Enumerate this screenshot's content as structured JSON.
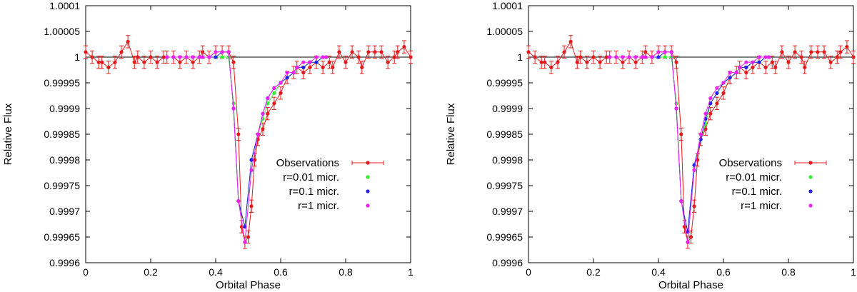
{
  "chart_data": [
    {
      "type": "scatter",
      "xlabel": "Orbital Phase",
      "ylabel": "Relative Flux",
      "xlim": [
        0,
        1
      ],
      "ylim": [
        0.9996,
        1.0001
      ],
      "xticks": [
        "0",
        "0.2",
        "0.4",
        "0.6",
        "0.8",
        "1"
      ],
      "yticks": [
        "0.9996",
        "0.99965",
        "0.9997",
        "0.99975",
        "0.9998",
        "0.99985",
        "0.9999",
        "0.99995",
        "1",
        "1.00005",
        "1.0001"
      ],
      "reference_line_y": 1.0,
      "legend_position": "right",
      "series": [
        {
          "name": "Observations",
          "color": "#e41a1c",
          "style": "line-points-errorbars",
          "x": [
            0.0,
            0.02,
            0.04,
            0.05,
            0.07,
            0.09,
            0.11,
            0.13,
            0.15,
            0.16,
            0.18,
            0.2,
            0.22,
            0.24,
            0.25,
            0.27,
            0.29,
            0.31,
            0.33,
            0.35,
            0.36,
            0.38,
            0.4,
            0.42,
            0.44,
            0.455,
            0.47,
            0.48,
            0.49,
            0.5,
            0.51,
            0.52,
            0.53,
            0.545,
            0.56,
            0.58,
            0.6,
            0.62,
            0.64,
            0.65,
            0.67,
            0.69,
            0.71,
            0.73,
            0.75,
            0.76,
            0.78,
            0.8,
            0.82,
            0.84,
            0.85,
            0.87,
            0.89,
            0.91,
            0.93,
            0.95,
            0.96,
            0.98,
            1.0
          ],
          "y": [
            1.00001,
            1.0,
            0.99999,
            0.99999,
            0.99998,
            0.99999,
            1.00001,
            1.00003,
            0.99999,
            1.0,
            0.99999,
            1.0,
            0.99999,
            1.0,
            1.0,
            1.0,
            0.99999,
            1.0,
            0.99999,
            1.0,
            1.00001,
            1.0,
            1.00001,
            1.00001,
            1.00001,
            0.99999,
            0.99985,
            0.99967,
            0.99964,
            0.99965,
            0.99971,
            0.9998,
            0.99984,
            0.99986,
            0.99989,
            0.99991,
            0.99993,
            0.99996,
            0.99997,
            0.99998,
            0.99997,
            0.99998,
            0.99999,
            0.99998,
            0.99999,
            0.99998,
            1.00001,
            0.99999,
            1.00001,
            1.0,
            0.99998,
            1.00001,
            1.00001,
            1.00001,
            0.99999,
            1.0,
            1.00001,
            1.00002,
            1.0
          ],
          "yerr": 1.2e-05
        },
        {
          "name": "r=0.01 micr.",
          "color": "#33ee33",
          "style": "line-points",
          "x": [
            0.25,
            0.27,
            0.29,
            0.31,
            0.33,
            0.35,
            0.36,
            0.38,
            0.4,
            0.42,
            0.44,
            0.455,
            0.47,
            0.49,
            0.51,
            0.53,
            0.545,
            0.56,
            0.58,
            0.6,
            0.62,
            0.64,
            0.65,
            0.67,
            0.69,
            0.71,
            0.73,
            0.74
          ],
          "y": [
            1.0,
            1.0,
            1.0,
            1.0,
            1.0,
            1.0,
            1.0,
            1.0,
            1.0,
            1.0,
            1.0,
            0.99991,
            0.99972,
            0.99967,
            0.9998,
            0.99985,
            0.99988,
            0.99991,
            0.99993,
            0.99995,
            0.99996,
            0.99997,
            0.99998,
            0.99998,
            0.99999,
            0.99999,
            1.0,
            1.0
          ]
        },
        {
          "name": "r=0.1 micr.",
          "color": "#2222ee",
          "style": "line-points",
          "x": [
            0.25,
            0.27,
            0.29,
            0.31,
            0.33,
            0.35,
            0.36,
            0.38,
            0.4,
            0.42,
            0.44,
            0.455,
            0.47,
            0.49,
            0.51,
            0.53,
            0.545,
            0.56,
            0.58,
            0.6,
            0.62,
            0.64,
            0.65,
            0.67,
            0.69,
            0.71,
            0.73,
            0.74
          ],
          "y": [
            1.0,
            1.0,
            1.0,
            1.0,
            1.0,
            1.0,
            1.0,
            1.0,
            1.0,
            1.00001,
            1.00001,
            0.9999,
            0.99972,
            0.99967,
            0.9998,
            0.99985,
            0.99989,
            0.99992,
            0.99994,
            0.99995,
            0.99996,
            0.99997,
            0.99998,
            0.99998,
            0.99999,
            0.99999,
            1.0,
            1.0
          ]
        },
        {
          "name": "r=1 micr.",
          "color": "#ee22ee",
          "style": "line-points",
          "x": [
            0.25,
            0.27,
            0.29,
            0.31,
            0.33,
            0.35,
            0.36,
            0.38,
            0.4,
            0.42,
            0.44,
            0.455,
            0.47,
            0.49,
            0.51,
            0.53,
            0.545,
            0.56,
            0.58,
            0.6,
            0.62,
            0.64,
            0.65,
            0.67,
            0.69,
            0.71,
            0.73,
            0.74
          ],
          "y": [
            1.0,
            1.0,
            1.0,
            1.0,
            1.0,
            1.0,
            1.0,
            1.0,
            1.00001,
            1.00001,
            1.00001,
            0.9999,
            0.99972,
            0.99964,
            0.99978,
            0.99985,
            0.99989,
            0.99992,
            0.99994,
            0.99995,
            0.99997,
            0.99997,
            0.99998,
            0.99999,
            0.99999,
            1.0,
            1.0,
            1.0
          ]
        }
      ]
    },
    {
      "type": "scatter",
      "xlabel": "Orbital Phase",
      "ylabel": "Relative Flux",
      "xlim": [
        0,
        1
      ],
      "ylim": [
        0.9996,
        1.0001
      ],
      "xticks": [
        "0",
        "0.2",
        "0.4",
        "0.6",
        "0.8",
        "1"
      ],
      "yticks": [
        "0.9996",
        "0.99965",
        "0.9997",
        "0.99975",
        "0.9998",
        "0.99985",
        "0.9999",
        "0.99995",
        "1",
        "1.00005",
        "1.0001"
      ],
      "reference_line_y": 1.0,
      "legend_position": "right",
      "series": [
        {
          "name": "Observations",
          "color": "#e41a1c",
          "style": "line-points-errorbars",
          "x": [
            0.0,
            0.02,
            0.04,
            0.05,
            0.07,
            0.09,
            0.11,
            0.13,
            0.15,
            0.16,
            0.18,
            0.2,
            0.22,
            0.24,
            0.25,
            0.27,
            0.29,
            0.31,
            0.33,
            0.35,
            0.36,
            0.38,
            0.4,
            0.42,
            0.44,
            0.455,
            0.47,
            0.48,
            0.49,
            0.5,
            0.51,
            0.52,
            0.53,
            0.545,
            0.56,
            0.58,
            0.6,
            0.62,
            0.64,
            0.65,
            0.67,
            0.69,
            0.71,
            0.73,
            0.75,
            0.76,
            0.78,
            0.8,
            0.82,
            0.84,
            0.85,
            0.87,
            0.89,
            0.91,
            0.93,
            0.95,
            0.96,
            0.98,
            1.0
          ],
          "y": [
            1.00001,
            1.0,
            0.99999,
            0.99999,
            0.99998,
            0.99999,
            1.00001,
            1.00003,
            0.99999,
            1.0,
            0.99999,
            1.0,
            0.99999,
            1.0,
            1.0,
            1.0,
            0.99999,
            1.0,
            0.99999,
            1.0,
            1.00001,
            1.0,
            1.00001,
            1.00001,
            1.00001,
            0.99999,
            0.99985,
            0.99967,
            0.99964,
            0.99965,
            0.99971,
            0.9998,
            0.99984,
            0.99986,
            0.99989,
            0.99991,
            0.99993,
            0.99996,
            0.99997,
            0.99998,
            0.99997,
            0.99998,
            0.99999,
            0.99998,
            0.99999,
            0.99998,
            1.00001,
            0.99999,
            1.00001,
            1.0,
            0.99998,
            1.00001,
            1.00001,
            1.00001,
            0.99999,
            1.0,
            1.00001,
            1.00002,
            1.0
          ],
          "yerr": 1.2e-05
        },
        {
          "name": "r=0.01 micr.",
          "color": "#33ee33",
          "style": "line-points",
          "x": [
            0.25,
            0.27,
            0.29,
            0.31,
            0.33,
            0.35,
            0.36,
            0.38,
            0.4,
            0.42,
            0.44,
            0.455,
            0.47,
            0.49,
            0.51,
            0.53,
            0.545,
            0.56,
            0.58,
            0.6,
            0.62,
            0.64,
            0.65,
            0.67,
            0.69,
            0.71,
            0.73,
            0.74
          ],
          "y": [
            1.0,
            1.0,
            1.0,
            1.0,
            1.0,
            1.0,
            1.0,
            1.0,
            1.0,
            1.0,
            1.0,
            0.99991,
            0.99972,
            0.99966,
            0.99979,
            0.99984,
            0.99987,
            0.99991,
            0.99993,
            0.99995,
            0.99996,
            0.99997,
            0.99998,
            0.99998,
            0.99999,
            0.99999,
            1.0,
            1.0
          ]
        },
        {
          "name": "r=0.1 micr.",
          "color": "#2222ee",
          "style": "line-points",
          "x": [
            0.25,
            0.27,
            0.29,
            0.31,
            0.33,
            0.35,
            0.36,
            0.38,
            0.4,
            0.42,
            0.44,
            0.455,
            0.47,
            0.49,
            0.51,
            0.53,
            0.545,
            0.56,
            0.58,
            0.6,
            0.62,
            0.64,
            0.65,
            0.67,
            0.69,
            0.71,
            0.73,
            0.74
          ],
          "y": [
            1.0,
            1.0,
            1.0,
            1.0,
            1.0,
            1.0,
            1.0,
            1.0,
            1.0,
            1.00001,
            1.00001,
            0.9999,
            0.99972,
            0.99966,
            0.99979,
            0.99984,
            0.99988,
            0.99991,
            0.99993,
            0.99995,
            0.99996,
            0.99997,
            0.99998,
            0.99998,
            0.99999,
            0.99999,
            1.0,
            1.0
          ]
        },
        {
          "name": "r=1 micr.",
          "color": "#ee22ee",
          "style": "line-points",
          "x": [
            0.25,
            0.27,
            0.29,
            0.31,
            0.33,
            0.35,
            0.36,
            0.38,
            0.4,
            0.42,
            0.44,
            0.455,
            0.47,
            0.49,
            0.51,
            0.53,
            0.545,
            0.56,
            0.58,
            0.6,
            0.62,
            0.64,
            0.65,
            0.67,
            0.69,
            0.71,
            0.73,
            0.74
          ],
          "y": [
            1.0,
            1.0,
            1.0,
            1.0,
            1.0,
            1.0,
            1.0,
            1.0,
            1.00001,
            1.00001,
            1.00001,
            0.9999,
            0.99972,
            0.99964,
            0.99978,
            0.99985,
            0.99989,
            0.99992,
            0.99994,
            0.99995,
            0.99997,
            0.99997,
            0.99998,
            0.99999,
            0.99999,
            1.0,
            1.0,
            1.0
          ]
        }
      ]
    }
  ]
}
